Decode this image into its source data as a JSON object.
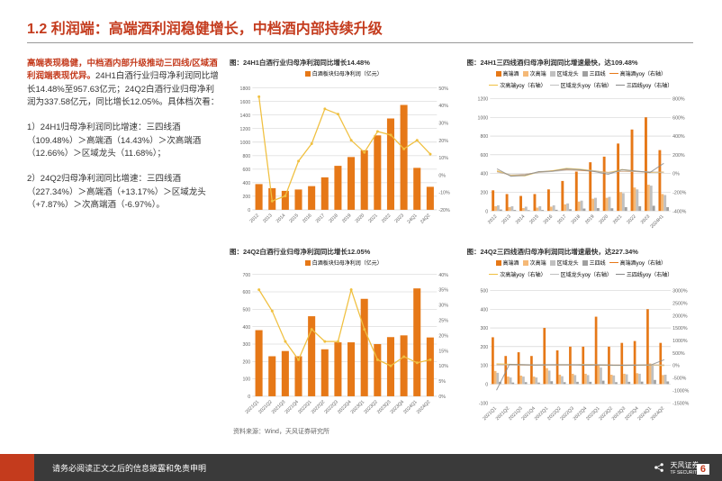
{
  "header": {
    "title": "1.2 利润端：高端酒利润稳健增长，中档酒内部持续升级"
  },
  "left": {
    "p1_red": "高端表现稳健，中档酒内部升级推动三四线/区域酒利润端表现优异。",
    "p1_rest": "24H1白酒行业归母净利润同比增长14.48%至957.63亿元；24Q2白酒行业归母净利润为337.58亿元，同比增长12.05%。具体档次看：",
    "p2": "1）24H1归母净利润同比增速：三四线酒（109.48%）＞高端酒（14.43%）＞次高端酒（12.66%）＞区域龙头（11.68%）；",
    "p3": "2）24Q2归母净利润同比增速：三四线酒（227.34%）＞高端酒（+13.17%）＞区域龙头（+7.87%）＞次高端酒（-6.97%）。"
  },
  "charts": {
    "tl": {
      "title": "图：24H1白酒行业归母净利润同比增长14.48%",
      "legend": [
        {
          "type": "sq",
          "color": "#e67817",
          "label": "白酒板块归母净利润（亿元）"
        }
      ],
      "xlabels": [
        "2012",
        "2013",
        "2014",
        "2015",
        "2016",
        "2017",
        "2018",
        "2019",
        "2020",
        "2021",
        "2022",
        "2023",
        "24Q1",
        "24Q2"
      ],
      "bars": [
        380,
        320,
        280,
        300,
        350,
        480,
        650,
        780,
        880,
        1100,
        1350,
        1550,
        620,
        340
      ],
      "line": [
        45,
        -15,
        -12,
        8,
        18,
        38,
        35,
        20,
        13,
        25,
        23,
        15,
        20,
        12
      ],
      "ylim": [
        0,
        1800
      ],
      "yticks": [
        0,
        200,
        400,
        600,
        800,
        1000,
        1200,
        1400,
        1600,
        1800
      ],
      "ylim2": [
        -20,
        50
      ],
      "yticks2": [
        "-20%",
        "-10%",
        "0%",
        "10%",
        "20%",
        "30%",
        "40%",
        "50%"
      ],
      "bar_color": "#e67817",
      "line_color": "#f0c040"
    },
    "tr": {
      "title": "图：24H1三四线酒归母净利润同比增速最快，达109.48%",
      "legend": [
        {
          "type": "sq",
          "color": "#e67817",
          "label": "高端酒"
        },
        {
          "type": "sq",
          "color": "#f5b977",
          "label": "次高端"
        },
        {
          "type": "sq",
          "color": "#c0c0c0",
          "label": "区域龙头"
        },
        {
          "type": "sq",
          "color": "#a0a0a0",
          "label": "三四线"
        },
        {
          "type": "line",
          "color": "#e67817",
          "label": "高端酒yoy（右轴）"
        },
        {
          "type": "line",
          "color": "#f0c040",
          "label": "次高端yoy（右轴）"
        },
        {
          "type": "line",
          "color": "#c0c0c0",
          "label": "区域龙头yoy（右轴）"
        },
        {
          "type": "line",
          "color": "#888",
          "label": "三四线yoy（右轴）"
        }
      ],
      "xlabels": [
        "2012",
        "2013",
        "2014",
        "2015",
        "2016",
        "2017",
        "2018",
        "2019",
        "2020",
        "2021",
        "2022",
        "2023",
        "2024H1"
      ],
      "groups": [
        [
          220,
          180,
          160,
          180,
          230,
          320,
          420,
          520,
          580,
          720,
          870,
          1000,
          650
        ],
        [
          50,
          40,
          30,
          35,
          45,
          70,
          100,
          130,
          140,
          200,
          250,
          280,
          180
        ],
        [
          60,
          50,
          45,
          50,
          60,
          80,
          110,
          140,
          150,
          190,
          230,
          270,
          170
        ],
        [
          15,
          10,
          8,
          10,
          12,
          18,
          25,
          30,
          28,
          40,
          50,
          55,
          40
        ]
      ],
      "group_colors": [
        "#e67817",
        "#f5b977",
        "#c0c0c0",
        "#a0a0a0"
      ],
      "lines": [
        [
          20,
          -18,
          -10,
          12,
          28,
          40,
          32,
          24,
          12,
          24,
          21,
          15,
          14
        ],
        [
          30,
          -20,
          -25,
          15,
          30,
          55,
          45,
          30,
          8,
          42,
          25,
          12,
          13
        ],
        [
          15,
          -15,
          -10,
          10,
          22,
          35,
          38,
          28,
          8,
          26,
          22,
          18,
          12
        ],
        [
          50,
          -30,
          -20,
          20,
          25,
          50,
          40,
          20,
          -8,
          42,
          26,
          10,
          109
        ]
      ],
      "line_colors": [
        "#e67817",
        "#f0c040",
        "#c0c0c0",
        "#888"
      ],
      "ylim": [
        0,
        1200
      ],
      "yticks": [
        0,
        200,
        400,
        600,
        800,
        1000,
        1200
      ],
      "ylim2": [
        -400,
        800
      ],
      "yticks2": [
        "-400%",
        "-200%",
        "0%",
        "200%",
        "400%",
        "600%",
        "800%"
      ]
    },
    "bl": {
      "title": "图：24Q2白酒行业归母净利润同比增长12.05%",
      "legend": [
        {
          "type": "sq",
          "color": "#e67817",
          "label": "白酒板块归母净利润（亿元）"
        }
      ],
      "xlabels": [
        "2021Q1",
        "2021Q2",
        "2021Q3",
        "2021Q4",
        "2022Q1",
        "2022Q2",
        "2022Q3",
        "2022Q4",
        "2023Q1",
        "2023Q2",
        "2023Q3",
        "2023Q4",
        "2024Q1",
        "2024Q2"
      ],
      "bars": [
        380,
        230,
        260,
        230,
        460,
        270,
        310,
        310,
        560,
        300,
        340,
        350,
        620,
        338
      ],
      "line": [
        35,
        28,
        18,
        12,
        22,
        18,
        18,
        35,
        22,
        12,
        10,
        13,
        11,
        12
      ],
      "ylim": [
        0,
        700
      ],
      "yticks": [
        0,
        100,
        200,
        300,
        400,
        500,
        600,
        700
      ],
      "ylim2": [
        0,
        40
      ],
      "yticks2": [
        "0%",
        "5%",
        "10%",
        "15%",
        "20%",
        "25%",
        "30%",
        "35%",
        "40%"
      ],
      "bar_color": "#e67817",
      "line_color": "#f0c040"
    },
    "br": {
      "title": "图：24Q2三四线酒归母净利润同比增速最快，达227.34%",
      "legend": [
        {
          "type": "sq",
          "color": "#e67817",
          "label": "高端酒"
        },
        {
          "type": "sq",
          "color": "#f5b977",
          "label": "次高端"
        },
        {
          "type": "sq",
          "color": "#c0c0c0",
          "label": "区域龙头"
        },
        {
          "type": "sq",
          "color": "#a0a0a0",
          "label": "三四线"
        },
        {
          "type": "line",
          "color": "#e67817",
          "label": "高端酒yoy（右轴）"
        },
        {
          "type": "line",
          "color": "#f0c040",
          "label": "次高端yoy（右轴）"
        },
        {
          "type": "line",
          "color": "#c0c0c0",
          "label": "区域龙头yoy（右轴）"
        },
        {
          "type": "line",
          "color": "#888",
          "label": "三四线yoy（右轴）"
        }
      ],
      "xlabels": [
        "2021Q1",
        "2021Q2",
        "2021Q3",
        "2021Q4",
        "2022Q1",
        "2022Q2",
        "2022Q3",
        "2022Q4",
        "2023Q1",
        "2023Q2",
        "2023Q3",
        "2023Q4",
        "2024Q1",
        "2024Q2"
      ],
      "groups": [
        [
          250,
          150,
          170,
          150,
          300,
          180,
          200,
          200,
          360,
          200,
          220,
          230,
          400,
          220
        ],
        [
          70,
          40,
          45,
          40,
          85,
          50,
          55,
          55,
          100,
          50,
          55,
          58,
          110,
          48
        ],
        [
          60,
          35,
          40,
          35,
          72,
          42,
          48,
          48,
          88,
          46,
          52,
          55,
          98,
          50
        ],
        [
          12,
          8,
          10,
          8,
          15,
          10,
          12,
          12,
          18,
          10,
          12,
          13,
          22,
          14
        ]
      ],
      "group_colors": [
        "#e67817",
        "#f5b977",
        "#c0c0c0",
        "#a0a0a0"
      ],
      "lines": [
        [
          30,
          25,
          15,
          10,
          20,
          18,
          18,
          33,
          20,
          12,
          10,
          15,
          11,
          13
        ],
        [
          60,
          45,
          25,
          12,
          22,
          25,
          22,
          38,
          18,
          2,
          0,
          5,
          10,
          -7
        ],
        [
          28,
          22,
          15,
          8,
          20,
          18,
          20,
          35,
          22,
          10,
          8,
          14,
          11,
          8
        ],
        [
          -1000,
          40,
          30,
          15,
          25,
          25,
          25,
          0,
          20,
          5,
          2,
          8,
          22,
          227
        ]
      ],
      "line_colors": [
        "#e67817",
        "#f0c040",
        "#c0c0c0",
        "#888"
      ],
      "ylim": [
        -100,
        500
      ],
      "yticks": [
        -100,
        0,
        100,
        200,
        300,
        400,
        500
      ],
      "ylim2": [
        -1500,
        3000
      ],
      "yticks2": [
        "-1500%",
        "-1000%",
        "-500%",
        "0%",
        "500%",
        "1000%",
        "1500%",
        "2000%",
        "2500%",
        "3000%"
      ]
    },
    "source": "资料来源：Wind，天风证券研究所"
  },
  "footer": {
    "disclaimer": "请务必阅读正文之后的信息披露和免责申明",
    "logo_text": "天风证券",
    "logo_sub": "TF SECURITIES",
    "page": "6"
  }
}
